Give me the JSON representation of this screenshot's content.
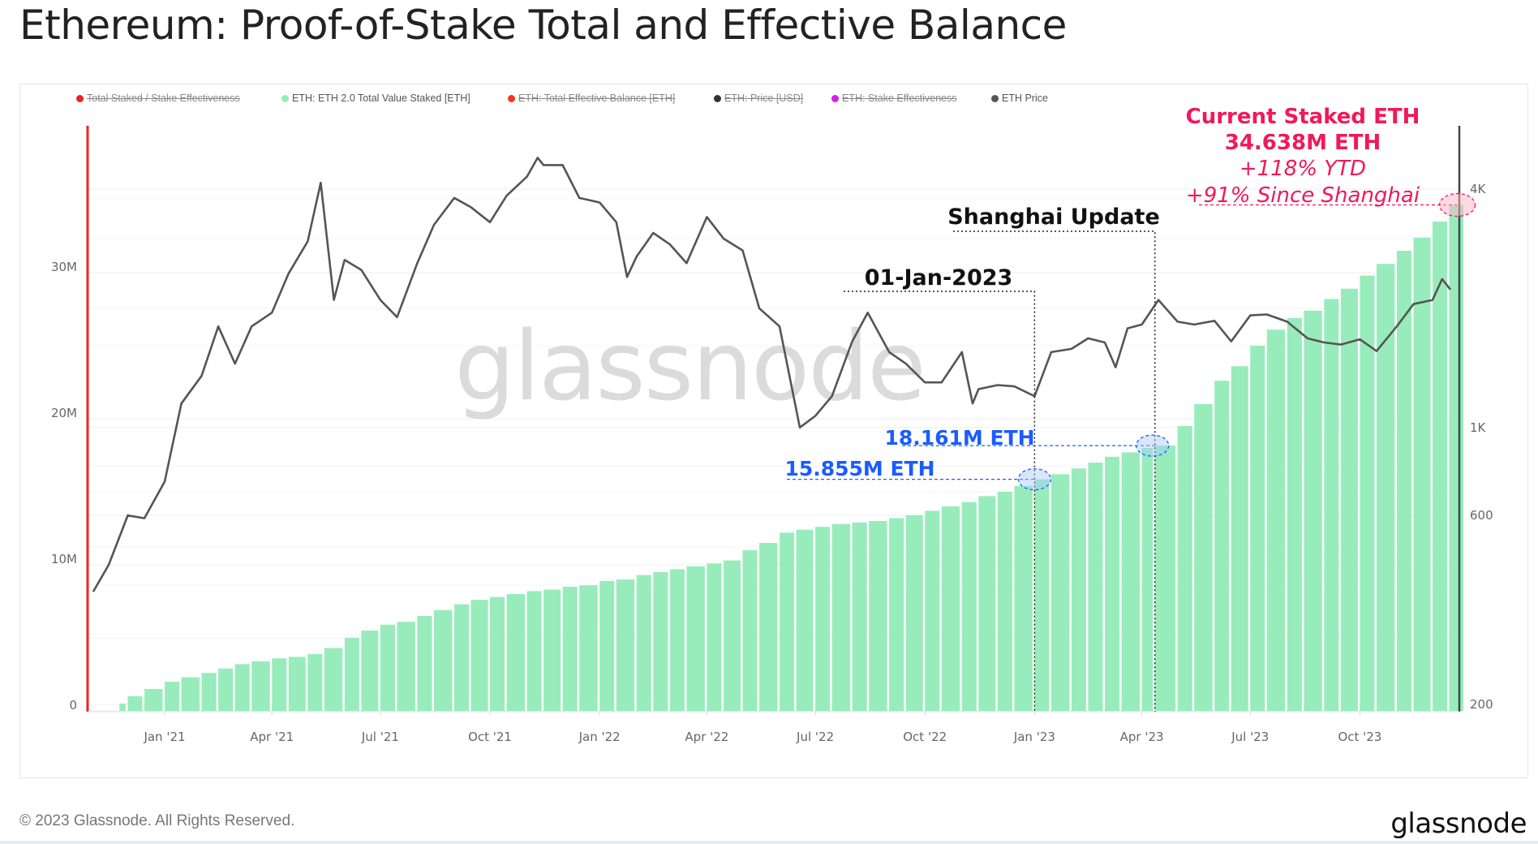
{
  "title": "Ethereum: Proof-of-Stake Total and Effective Balance",
  "legend": [
    {
      "label": "Total Staked / Stake Effectiveness",
      "color": "#e8251f",
      "hidden": true
    },
    {
      "label": "ETH: ETH 2.0 Total Value Staked [ETH]",
      "color": "#98ecbc",
      "hidden": false
    },
    {
      "label": "ETH: Total Effective Balance [ETH]",
      "color": "#f5351a",
      "hidden": true
    },
    {
      "label": "ETH: Price [USD]",
      "color": "#333333",
      "hidden": true
    },
    {
      "label": "ETH: Stake Effectiveness",
      "color": "#d51ee6",
      "hidden": true
    },
    {
      "label": "ETH Price",
      "color": "#555555",
      "hidden": false
    }
  ],
  "annotations": {
    "jan2023_label": "01-Jan-2023",
    "jan2023_date": "2023-01-01",
    "shanghai_label": "Shanghai Update",
    "shanghai_date": "2023-04-12",
    "jan_value_label": "15.855M ETH",
    "jan_value": 15.855,
    "shanghai_value_label": "18.161M ETH",
    "shanghai_value": 18.161,
    "current_title": "Current Staked ETH",
    "current_value_label": "34.638M ETH",
    "current_value": 34.638,
    "current_date": "2023-12-15",
    "ytd": "+118% YTD",
    "since_shanghai": "+91% Since Shanghai",
    "highlight_color": "#f0195a",
    "marker_color": "#1a5cff"
  },
  "watermark": "glassnode",
  "footer": {
    "copyright": "© 2023 Glassnode. All Rights Reserved.",
    "logo": "glassnode"
  },
  "chart_data": {
    "type": "bar+line",
    "title": "Ethereum: Proof-of-Stake Total and Effective Balance",
    "x_ticks": [
      {
        "date": "2021-01-01",
        "label": "Jan '21"
      },
      {
        "date": "2021-04-01",
        "label": "Apr '21"
      },
      {
        "date": "2021-07-01",
        "label": "Jul '21"
      },
      {
        "date": "2021-10-01",
        "label": "Oct '21"
      },
      {
        "date": "2022-01-01",
        "label": "Jan '22"
      },
      {
        "date": "2022-04-01",
        "label": "Apr '22"
      },
      {
        "date": "2022-07-01",
        "label": "Jul '22"
      },
      {
        "date": "2022-10-01",
        "label": "Oct '22"
      },
      {
        "date": "2023-01-01",
        "label": "Jan '23"
      },
      {
        "date": "2023-04-01",
        "label": "Apr '23"
      },
      {
        "date": "2023-07-01",
        "label": "Jul '23"
      },
      {
        "date": "2023-10-01",
        "label": "Oct '23"
      }
    ],
    "x_range": [
      "2020-11-01",
      "2023-12-18"
    ],
    "y_left": {
      "scale": "linear",
      "range": [
        0,
        40000000
      ],
      "ticks": [
        {
          "v": 0,
          "label": "0"
        },
        {
          "v": 10000000,
          "label": "10M"
        },
        {
          "v": 20000000,
          "label": "20M"
        },
        {
          "v": 30000000,
          "label": "30M"
        }
      ]
    },
    "y_right": {
      "scale": "log",
      "range": [
        200,
        5500
      ],
      "ticks": [
        {
          "v": 200,
          "label": "200"
        },
        {
          "v": 600,
          "label": "600"
        },
        {
          "v": 1000,
          "label": "1K"
        },
        {
          "v": 4000,
          "label": "4K"
        }
      ]
    },
    "grid": true,
    "legend_position": "top",
    "series": [
      {
        "name": "ETH: ETH 2.0 Total Value Staked [ETH]",
        "type": "bar",
        "axis": "left",
        "color": "#98ecbc",
        "points": [
          [
            "2020-11-24",
            500000
          ],
          [
            "2020-12-01",
            1000000
          ],
          [
            "2020-12-15",
            1500000
          ],
          [
            "2021-01-01",
            2000000
          ],
          [
            "2021-01-15",
            2300000
          ],
          [
            "2021-02-01",
            2600000
          ],
          [
            "2021-02-15",
            2900000
          ],
          [
            "2021-03-01",
            3200000
          ],
          [
            "2021-03-15",
            3400000
          ],
          [
            "2021-04-01",
            3600000
          ],
          [
            "2021-04-15",
            3700000
          ],
          [
            "2021-05-01",
            3900000
          ],
          [
            "2021-05-15",
            4300000
          ],
          [
            "2021-06-01",
            5000000
          ],
          [
            "2021-06-15",
            5500000
          ],
          [
            "2021-07-01",
            5900000
          ],
          [
            "2021-07-15",
            6100000
          ],
          [
            "2021-08-01",
            6500000
          ],
          [
            "2021-08-15",
            6900000
          ],
          [
            "2021-09-01",
            7300000
          ],
          [
            "2021-09-15",
            7600000
          ],
          [
            "2021-10-01",
            7800000
          ],
          [
            "2021-10-15",
            8000000
          ],
          [
            "2021-11-01",
            8200000
          ],
          [
            "2021-11-15",
            8300000
          ],
          [
            "2021-12-01",
            8500000
          ],
          [
            "2021-12-15",
            8600000
          ],
          [
            "2022-01-01",
            8900000
          ],
          [
            "2022-01-15",
            9000000
          ],
          [
            "2022-02-01",
            9300000
          ],
          [
            "2022-02-15",
            9500000
          ],
          [
            "2022-03-01",
            9700000
          ],
          [
            "2022-03-15",
            9900000
          ],
          [
            "2022-04-01",
            10100000
          ],
          [
            "2022-04-15",
            10300000
          ],
          [
            "2022-05-01",
            11000000
          ],
          [
            "2022-05-15",
            11500000
          ],
          [
            "2022-06-01",
            12200000
          ],
          [
            "2022-06-15",
            12400000
          ],
          [
            "2022-07-01",
            12600000
          ],
          [
            "2022-07-15",
            12800000
          ],
          [
            "2022-08-01",
            12900000
          ],
          [
            "2022-08-15",
            13000000
          ],
          [
            "2022-09-01",
            13200000
          ],
          [
            "2022-09-15",
            13400000
          ],
          [
            "2022-10-01",
            13700000
          ],
          [
            "2022-10-15",
            14000000
          ],
          [
            "2022-11-01",
            14300000
          ],
          [
            "2022-11-15",
            14700000
          ],
          [
            "2022-12-01",
            15000000
          ],
          [
            "2022-12-15",
            15400000
          ],
          [
            "2023-01-01",
            15855000
          ],
          [
            "2023-01-15",
            16200000
          ],
          [
            "2023-02-01",
            16600000
          ],
          [
            "2023-02-15",
            17000000
          ],
          [
            "2023-03-01",
            17400000
          ],
          [
            "2023-03-15",
            17700000
          ],
          [
            "2023-04-01",
            18000000
          ],
          [
            "2023-04-12",
            18161000
          ],
          [
            "2023-05-01",
            19500000
          ],
          [
            "2023-05-15",
            21000000
          ],
          [
            "2023-06-01",
            22600000
          ],
          [
            "2023-06-15",
            23600000
          ],
          [
            "2023-07-01",
            25000000
          ],
          [
            "2023-07-15",
            26100000
          ],
          [
            "2023-08-01",
            26900000
          ],
          [
            "2023-08-15",
            27400000
          ],
          [
            "2023-09-01",
            28200000
          ],
          [
            "2023-09-15",
            28900000
          ],
          [
            "2023-10-01",
            29800000
          ],
          [
            "2023-10-15",
            30600000
          ],
          [
            "2023-11-01",
            31500000
          ],
          [
            "2023-11-15",
            32400000
          ],
          [
            "2023-12-01",
            33500000
          ],
          [
            "2023-12-15",
            34638000
          ]
        ]
      },
      {
        "name": "ETH Price",
        "type": "line",
        "axis": "right",
        "color": "#555555",
        "points": [
          [
            "2020-11-02",
            385
          ],
          [
            "2020-11-15",
            450
          ],
          [
            "2020-12-01",
            600
          ],
          [
            "2020-12-15",
            590
          ],
          [
            "2021-01-01",
            730
          ],
          [
            "2021-01-15",
            1150
          ],
          [
            "2021-02-01",
            1350
          ],
          [
            "2021-02-15",
            1800
          ],
          [
            "2021-03-01",
            1450
          ],
          [
            "2021-03-15",
            1800
          ],
          [
            "2021-04-01",
            1950
          ],
          [
            "2021-04-15",
            2450
          ],
          [
            "2021-05-01",
            2950
          ],
          [
            "2021-05-12",
            4150
          ],
          [
            "2021-05-23",
            2100
          ],
          [
            "2021-06-01",
            2650
          ],
          [
            "2021-06-15",
            2500
          ],
          [
            "2021-07-01",
            2100
          ],
          [
            "2021-07-15",
            1900
          ],
          [
            "2021-08-01",
            2600
          ],
          [
            "2021-08-15",
            3250
          ],
          [
            "2021-09-01",
            3800
          ],
          [
            "2021-09-15",
            3600
          ],
          [
            "2021-10-01",
            3300
          ],
          [
            "2021-10-15",
            3850
          ],
          [
            "2021-11-01",
            4300
          ],
          [
            "2021-11-10",
            4800
          ],
          [
            "2021-11-15",
            4600
          ],
          [
            "2021-12-01",
            4600
          ],
          [
            "2021-12-15",
            3800
          ],
          [
            "2022-01-01",
            3700
          ],
          [
            "2022-01-15",
            3300
          ],
          [
            "2022-01-24",
            2400
          ],
          [
            "2022-02-01",
            2700
          ],
          [
            "2022-02-15",
            3100
          ],
          [
            "2022-03-01",
            2900
          ],
          [
            "2022-03-15",
            2600
          ],
          [
            "2022-04-01",
            3400
          ],
          [
            "2022-04-15",
            3000
          ],
          [
            "2022-05-01",
            2800
          ],
          [
            "2022-05-15",
            2000
          ],
          [
            "2022-06-01",
            1800
          ],
          [
            "2022-06-18",
            1000
          ],
          [
            "2022-07-01",
            1070
          ],
          [
            "2022-07-15",
            1200
          ],
          [
            "2022-08-01",
            1650
          ],
          [
            "2022-08-14",
            1950
          ],
          [
            "2022-09-01",
            1550
          ],
          [
            "2022-09-15",
            1450
          ],
          [
            "2022-10-01",
            1300
          ],
          [
            "2022-10-15",
            1300
          ],
          [
            "2022-11-01",
            1550
          ],
          [
            "2022-11-10",
            1150
          ],
          [
            "2022-11-15",
            1250
          ],
          [
            "2022-12-01",
            1280
          ],
          [
            "2022-12-15",
            1270
          ],
          [
            "2023-01-01",
            1200
          ],
          [
            "2023-01-15",
            1550
          ],
          [
            "2023-02-01",
            1580
          ],
          [
            "2023-02-15",
            1680
          ],
          [
            "2023-03-01",
            1640
          ],
          [
            "2023-03-10",
            1420
          ],
          [
            "2023-03-20",
            1780
          ],
          [
            "2023-04-01",
            1820
          ],
          [
            "2023-04-15",
            2100
          ],
          [
            "2023-05-01",
            1850
          ],
          [
            "2023-05-15",
            1820
          ],
          [
            "2023-06-01",
            1860
          ],
          [
            "2023-06-15",
            1650
          ],
          [
            "2023-07-01",
            1920
          ],
          [
            "2023-07-15",
            1930
          ],
          [
            "2023-08-01",
            1850
          ],
          [
            "2023-08-18",
            1680
          ],
          [
            "2023-09-01",
            1640
          ],
          [
            "2023-09-15",
            1620
          ],
          [
            "2023-10-01",
            1670
          ],
          [
            "2023-10-15",
            1560
          ],
          [
            "2023-11-01",
            1800
          ],
          [
            "2023-11-15",
            2050
          ],
          [
            "2023-12-01",
            2100
          ],
          [
            "2023-12-09",
            2370
          ],
          [
            "2023-12-16",
            2230
          ]
        ]
      }
    ]
  }
}
